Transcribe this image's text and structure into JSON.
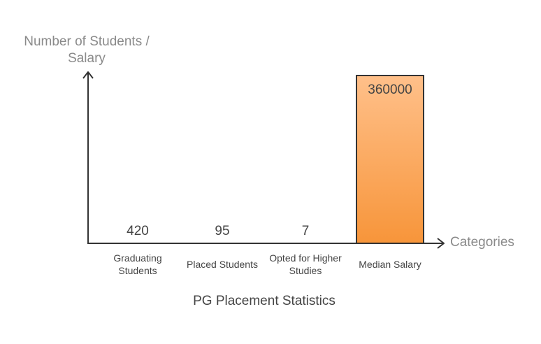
{
  "chart_data": {
    "type": "bar",
    "title": "PG Placement Statistics",
    "xlabel": "Categories",
    "ylabel": "Number of Students / Salary",
    "categories": [
      "Graduating Students",
      "Placed Students",
      "Opted for Higher Studies",
      "Median Salary"
    ],
    "values": [
      420,
      95,
      7,
      360000
    ],
    "value_labels": [
      "420",
      "95",
      "7",
      "360000"
    ],
    "ylim": [
      0,
      360000
    ],
    "grid": false,
    "colors": {
      "bar_top": "#ffc08a",
      "bar_bottom": "#f7953a",
      "bar_stroke": "#333333",
      "axis": "#333333"
    }
  }
}
